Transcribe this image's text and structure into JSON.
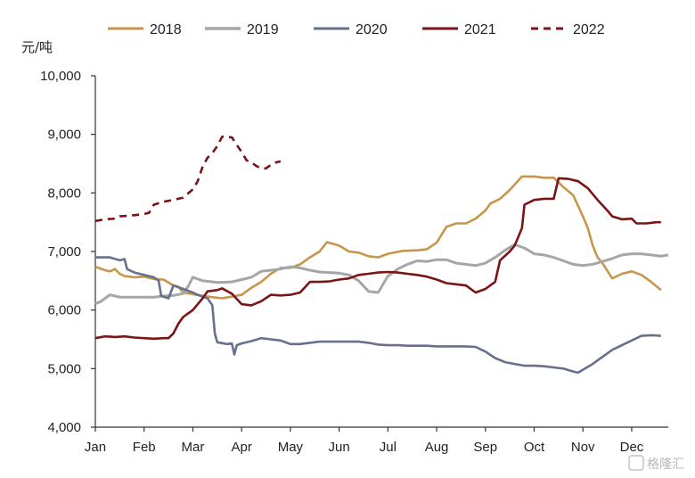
{
  "chart_data": {
    "type": "line",
    "ylabel": "元/吨",
    "ylim": [
      4000,
      10000
    ],
    "yticks": [
      4000,
      5000,
      6000,
      7000,
      8000,
      9000,
      10000
    ],
    "ytick_labels": [
      "4,000",
      "5,000",
      "6,000",
      "7,000",
      "8,000",
      "9,000",
      "10,000"
    ],
    "xlim": [
      0,
      11.75
    ],
    "months": [
      "Jan",
      "Feb",
      "Mar",
      "Apr",
      "May",
      "Jun",
      "Jul",
      "Aug",
      "Sep",
      "Oct",
      "Nov",
      "Dec"
    ],
    "legend_position": "top",
    "grid": false,
    "series": [
      {
        "name": "2018",
        "color": "#c8964b",
        "dash": "solid",
        "points": [
          [
            0,
            6740
          ],
          [
            0.2,
            6680
          ],
          [
            0.3,
            6660
          ],
          [
            0.4,
            6700
          ],
          [
            0.5,
            6620
          ],
          [
            0.6,
            6580
          ],
          [
            0.8,
            6560
          ],
          [
            1.0,
            6570
          ],
          [
            1.2,
            6530
          ],
          [
            1.4,
            6520
          ],
          [
            1.6,
            6420
          ],
          [
            1.7,
            6400
          ],
          [
            1.8,
            6300
          ],
          [
            2.0,
            6270
          ],
          [
            2.3,
            6230
          ],
          [
            2.6,
            6200
          ],
          [
            2.8,
            6230
          ],
          [
            3.0,
            6260
          ],
          [
            3.2,
            6380
          ],
          [
            3.4,
            6480
          ],
          [
            3.6,
            6620
          ],
          [
            3.8,
            6720
          ],
          [
            4.0,
            6720
          ],
          [
            4.2,
            6780
          ],
          [
            4.4,
            6900
          ],
          [
            4.6,
            7000
          ],
          [
            4.75,
            7160
          ],
          [
            5.0,
            7100
          ],
          [
            5.2,
            7000
          ],
          [
            5.4,
            6980
          ],
          [
            5.6,
            6920
          ],
          [
            5.8,
            6900
          ],
          [
            6.0,
            6960
          ],
          [
            6.3,
            7010
          ],
          [
            6.6,
            7020
          ],
          [
            6.8,
            7040
          ],
          [
            7.0,
            7150
          ],
          [
            7.2,
            7420
          ],
          [
            7.4,
            7480
          ],
          [
            7.6,
            7480
          ],
          [
            7.8,
            7560
          ],
          [
            8.0,
            7700
          ],
          [
            8.1,
            7820
          ],
          [
            8.3,
            7900
          ],
          [
            8.5,
            8050
          ],
          [
            8.75,
            8280
          ],
          [
            9.0,
            8280
          ],
          [
            9.2,
            8260
          ],
          [
            9.4,
            8260
          ],
          [
            9.6,
            8100
          ],
          [
            9.8,
            7960
          ],
          [
            10.0,
            7600
          ],
          [
            10.1,
            7400
          ],
          [
            10.2,
            7100
          ],
          [
            10.3,
            6900
          ],
          [
            10.4,
            6800
          ],
          [
            10.6,
            6540
          ],
          [
            10.8,
            6620
          ],
          [
            11.0,
            6660
          ],
          [
            11.2,
            6600
          ],
          [
            11.4,
            6480
          ],
          [
            11.6,
            6340
          ]
        ]
      },
      {
        "name": "2019",
        "color": "#a6a6a6",
        "dash": "solid",
        "points": [
          [
            0,
            6110
          ],
          [
            0.1,
            6140
          ],
          [
            0.3,
            6260
          ],
          [
            0.5,
            6220
          ],
          [
            0.8,
            6220
          ],
          [
            1.0,
            6220
          ],
          [
            1.2,
            6220
          ],
          [
            1.4,
            6240
          ],
          [
            1.6,
            6250
          ],
          [
            1.8,
            6280
          ],
          [
            1.9,
            6400
          ],
          [
            2.0,
            6560
          ],
          [
            2.2,
            6500
          ],
          [
            2.5,
            6470
          ],
          [
            2.8,
            6480
          ],
          [
            3.0,
            6520
          ],
          [
            3.2,
            6560
          ],
          [
            3.4,
            6660
          ],
          [
            3.6,
            6680
          ],
          [
            3.8,
            6700
          ],
          [
            4.0,
            6740
          ],
          [
            4.2,
            6720
          ],
          [
            4.4,
            6680
          ],
          [
            4.6,
            6650
          ],
          [
            4.8,
            6640
          ],
          [
            5.0,
            6630
          ],
          [
            5.2,
            6600
          ],
          [
            5.4,
            6500
          ],
          [
            5.6,
            6320
          ],
          [
            5.8,
            6300
          ],
          [
            6.0,
            6580
          ],
          [
            6.2,
            6700
          ],
          [
            6.4,
            6780
          ],
          [
            6.6,
            6840
          ],
          [
            6.8,
            6830
          ],
          [
            7.0,
            6860
          ],
          [
            7.2,
            6860
          ],
          [
            7.4,
            6800
          ],
          [
            7.6,
            6780
          ],
          [
            7.8,
            6760
          ],
          [
            8.0,
            6800
          ],
          [
            8.2,
            6900
          ],
          [
            8.4,
            7020
          ],
          [
            8.6,
            7120
          ],
          [
            8.8,
            7060
          ],
          [
            9.0,
            6960
          ],
          [
            9.2,
            6940
          ],
          [
            9.4,
            6900
          ],
          [
            9.6,
            6840
          ],
          [
            9.8,
            6780
          ],
          [
            10.0,
            6760
          ],
          [
            10.2,
            6780
          ],
          [
            10.4,
            6830
          ],
          [
            10.6,
            6880
          ],
          [
            10.8,
            6940
          ],
          [
            11.0,
            6960
          ],
          [
            11.2,
            6960
          ],
          [
            11.4,
            6940
          ],
          [
            11.6,
            6920
          ],
          [
            11.75,
            6940
          ]
        ]
      },
      {
        "name": "2020",
        "color": "#67718d",
        "dash": "solid",
        "points": [
          [
            0,
            6900
          ],
          [
            0.3,
            6900
          ],
          [
            0.5,
            6850
          ],
          [
            0.6,
            6870
          ],
          [
            0.65,
            6700
          ],
          [
            0.8,
            6640
          ],
          [
            1.0,
            6600
          ],
          [
            1.2,
            6560
          ],
          [
            1.3,
            6500
          ],
          [
            1.35,
            6240
          ],
          [
            1.5,
            6200
          ],
          [
            1.6,
            6420
          ],
          [
            1.8,
            6360
          ],
          [
            2.0,
            6300
          ],
          [
            2.1,
            6260
          ],
          [
            2.3,
            6200
          ],
          [
            2.4,
            6080
          ],
          [
            2.45,
            5600
          ],
          [
            2.5,
            5450
          ],
          [
            2.7,
            5420
          ],
          [
            2.8,
            5430
          ],
          [
            2.85,
            5240
          ],
          [
            2.9,
            5400
          ],
          [
            3.0,
            5430
          ],
          [
            3.2,
            5470
          ],
          [
            3.4,
            5520
          ],
          [
            3.6,
            5500
          ],
          [
            3.8,
            5480
          ],
          [
            4.0,
            5420
          ],
          [
            4.2,
            5420
          ],
          [
            4.4,
            5440
          ],
          [
            4.6,
            5460
          ],
          [
            4.8,
            5460
          ],
          [
            5.0,
            5460
          ],
          [
            5.2,
            5460
          ],
          [
            5.4,
            5460
          ],
          [
            5.6,
            5440
          ],
          [
            5.8,
            5410
          ],
          [
            6.0,
            5400
          ],
          [
            6.2,
            5400
          ],
          [
            6.4,
            5390
          ],
          [
            6.6,
            5390
          ],
          [
            6.8,
            5390
          ],
          [
            7.0,
            5380
          ],
          [
            7.2,
            5380
          ],
          [
            7.4,
            5380
          ],
          [
            7.6,
            5380
          ],
          [
            7.8,
            5370
          ],
          [
            8.0,
            5290
          ],
          [
            8.2,
            5180
          ],
          [
            8.4,
            5110
          ],
          [
            8.6,
            5080
          ],
          [
            8.8,
            5050
          ],
          [
            9.0,
            5050
          ],
          [
            9.2,
            5040
          ],
          [
            9.4,
            5020
          ],
          [
            9.6,
            5000
          ],
          [
            9.8,
            4950
          ],
          [
            9.9,
            4930
          ],
          [
            10.0,
            4980
          ],
          [
            10.2,
            5080
          ],
          [
            10.4,
            5200
          ],
          [
            10.6,
            5320
          ],
          [
            10.8,
            5400
          ],
          [
            11.0,
            5480
          ],
          [
            11.2,
            5560
          ],
          [
            11.4,
            5570
          ],
          [
            11.6,
            5560
          ]
        ]
      },
      {
        "name": "2021",
        "color": "#7b1416",
        "dash": "solid",
        "points": [
          [
            0,
            5520
          ],
          [
            0.2,
            5550
          ],
          [
            0.4,
            5540
          ],
          [
            0.6,
            5550
          ],
          [
            0.8,
            5530
          ],
          [
            1.0,
            5520
          ],
          [
            1.2,
            5510
          ],
          [
            1.4,
            5520
          ],
          [
            1.5,
            5520
          ],
          [
            1.6,
            5600
          ],
          [
            1.7,
            5760
          ],
          [
            1.8,
            5880
          ],
          [
            2.0,
            6000
          ],
          [
            2.2,
            6200
          ],
          [
            2.3,
            6320
          ],
          [
            2.5,
            6340
          ],
          [
            2.6,
            6370
          ],
          [
            2.8,
            6280
          ],
          [
            3.0,
            6100
          ],
          [
            3.2,
            6080
          ],
          [
            3.4,
            6150
          ],
          [
            3.6,
            6260
          ],
          [
            3.8,
            6250
          ],
          [
            4.0,
            6260
          ],
          [
            4.2,
            6300
          ],
          [
            4.4,
            6480
          ],
          [
            4.6,
            6480
          ],
          [
            4.8,
            6490
          ],
          [
            5.0,
            6520
          ],
          [
            5.2,
            6540
          ],
          [
            5.4,
            6600
          ],
          [
            5.6,
            6620
          ],
          [
            5.8,
            6640
          ],
          [
            6.0,
            6650
          ],
          [
            6.2,
            6640
          ],
          [
            6.4,
            6620
          ],
          [
            6.6,
            6600
          ],
          [
            6.8,
            6570
          ],
          [
            7.0,
            6520
          ],
          [
            7.2,
            6460
          ],
          [
            7.4,
            6440
          ],
          [
            7.6,
            6420
          ],
          [
            7.8,
            6300
          ],
          [
            8.0,
            6360
          ],
          [
            8.2,
            6480
          ],
          [
            8.3,
            6850
          ],
          [
            8.5,
            7000
          ],
          [
            8.6,
            7100
          ],
          [
            8.75,
            7400
          ],
          [
            8.8,
            7800
          ],
          [
            9.0,
            7880
          ],
          [
            9.2,
            7900
          ],
          [
            9.4,
            7900
          ],
          [
            9.5,
            8250
          ],
          [
            9.7,
            8240
          ],
          [
            9.9,
            8200
          ],
          [
            10.1,
            8080
          ],
          [
            10.3,
            7880
          ],
          [
            10.5,
            7700
          ],
          [
            10.6,
            7600
          ],
          [
            10.8,
            7550
          ],
          [
            11.0,
            7560
          ],
          [
            11.1,
            7480
          ],
          [
            11.3,
            7480
          ],
          [
            11.5,
            7500
          ],
          [
            11.6,
            7500
          ]
        ]
      },
      {
        "name": "2022",
        "color": "#7b1416",
        "dash": "dashed",
        "points": [
          [
            0,
            7520
          ],
          [
            0.2,
            7550
          ],
          [
            0.4,
            7560
          ],
          [
            0.5,
            7600
          ],
          [
            0.7,
            7610
          ],
          [
            1.0,
            7640
          ],
          [
            1.1,
            7660
          ],
          [
            1.2,
            7800
          ],
          [
            1.4,
            7850
          ],
          [
            1.6,
            7880
          ],
          [
            1.8,
            7920
          ],
          [
            2.0,
            8060
          ],
          [
            2.1,
            8200
          ],
          [
            2.2,
            8450
          ],
          [
            2.3,
            8600
          ],
          [
            2.4,
            8680
          ],
          [
            2.5,
            8800
          ],
          [
            2.6,
            8960
          ],
          [
            2.8,
            8950
          ],
          [
            2.9,
            8820
          ],
          [
            3.0,
            8700
          ],
          [
            3.1,
            8560
          ],
          [
            3.2,
            8520
          ],
          [
            3.3,
            8460
          ],
          [
            3.4,
            8420
          ],
          [
            3.5,
            8420
          ],
          [
            3.6,
            8480
          ],
          [
            3.7,
            8520
          ],
          [
            3.8,
            8540
          ]
        ]
      }
    ]
  },
  "watermark": "格隆汇"
}
